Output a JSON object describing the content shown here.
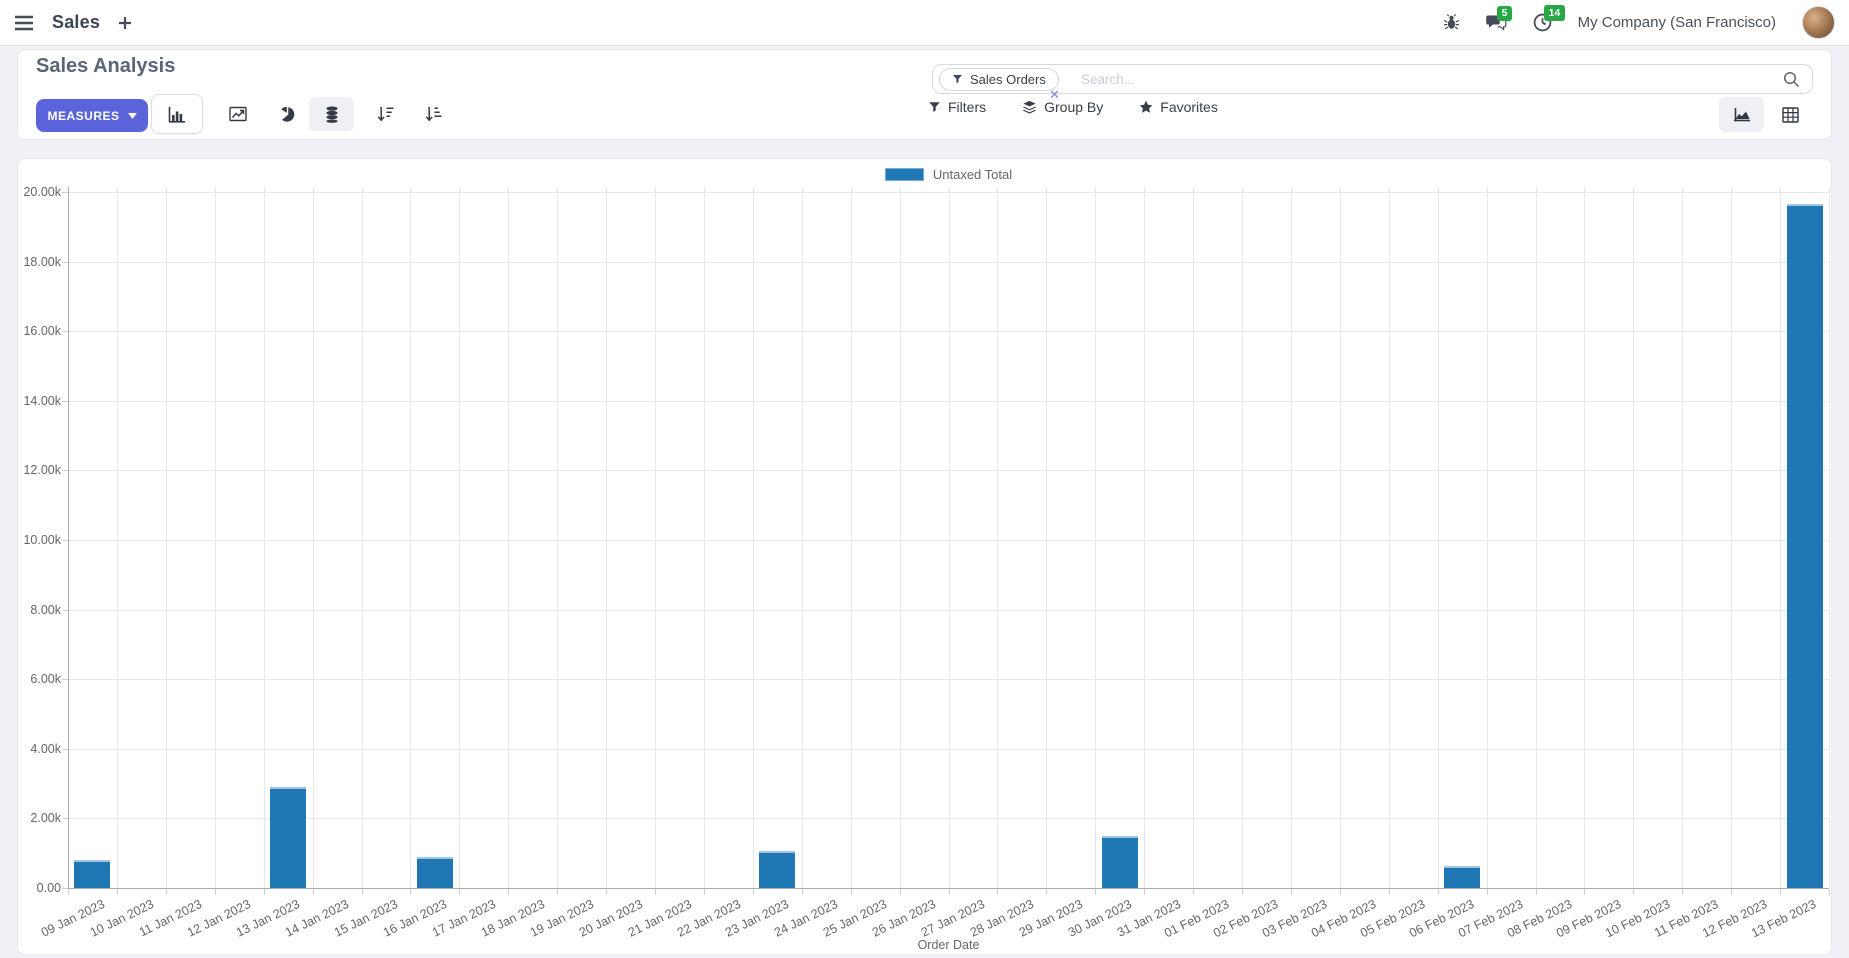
{
  "navbar": {
    "app_name": "Sales",
    "messages_badge": "5",
    "activities_badge": "14",
    "company": "My Company (San Francisco)"
  },
  "control_panel": {
    "title": "Sales Analysis",
    "measures_label": "MEASURES",
    "search": {
      "facet": "Sales Orders",
      "placeholder": "Search..."
    },
    "filters_label": "Filters",
    "group_by_label": "Group By",
    "favorites_label": "Favorites"
  },
  "chart_data": {
    "type": "bar",
    "title": "",
    "xlabel": "Order Date",
    "ylabel": "",
    "ylim": [
      0,
      20000
    ],
    "grid": true,
    "legend_position": "top",
    "ytick_labels": [
      "0.00",
      "2.00k",
      "4.00k",
      "6.00k",
      "8.00k",
      "10.00k",
      "12.00k",
      "14.00k",
      "16.00k",
      "18.00k",
      "20.00k"
    ],
    "categories": [
      "09 Jan 2023",
      "10 Jan 2023",
      "11 Jan 2023",
      "12 Jan 2023",
      "13 Jan 2023",
      "14 Jan 2023",
      "15 Jan 2023",
      "16 Jan 2023",
      "17 Jan 2023",
      "18 Jan 2023",
      "19 Jan 2023",
      "20 Jan 2023",
      "21 Jan 2023",
      "22 Jan 2023",
      "23 Jan 2023",
      "24 Jan 2023",
      "25 Jan 2023",
      "26 Jan 2023",
      "27 Jan 2023",
      "28 Jan 2023",
      "29 Jan 2023",
      "30 Jan 2023",
      "31 Jan 2023",
      "01 Feb 2023",
      "02 Feb 2023",
      "03 Feb 2023",
      "04 Feb 2023",
      "05 Feb 2023",
      "06 Feb 2023",
      "07 Feb 2023",
      "08 Feb 2023",
      "09 Feb 2023",
      "10 Feb 2023",
      "11 Feb 2023",
      "12 Feb 2023",
      "13 Feb 2023"
    ],
    "series": [
      {
        "name": "Untaxed Total",
        "color": "#1f77b4",
        "values": [
          800,
          0,
          0,
          0,
          2900,
          0,
          0,
          900,
          0,
          0,
          0,
          0,
          0,
          0,
          1050,
          0,
          0,
          0,
          0,
          0,
          0,
          1500,
          0,
          0,
          0,
          0,
          0,
          0,
          630,
          0,
          0,
          0,
          0,
          0,
          0,
          19650
        ]
      }
    ]
  },
  "colors": {
    "primary": "#5B64DB",
    "bar": "#1f77b4",
    "badge": "#28a745"
  }
}
